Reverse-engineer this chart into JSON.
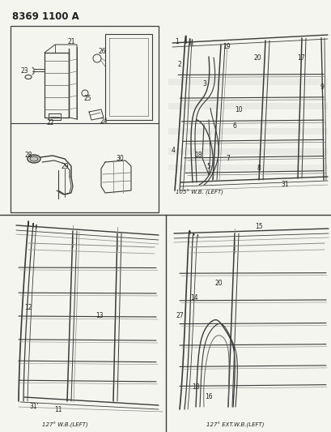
{
  "title": "8369 1100 A",
  "bg_color": "#f5f5f0",
  "line_color": "#3a3a3a",
  "caption_tr": "105° W.B. (LEFT)",
  "caption_bl": "127° W.B.(LEFT)",
  "caption_br": "127° EXT.W.B.(LEFT)",
  "label_color": "#222222",
  "box_color": "#3a3a3a",
  "fig_w": 4.1,
  "fig_h": 5.33,
  "dpi": 100
}
